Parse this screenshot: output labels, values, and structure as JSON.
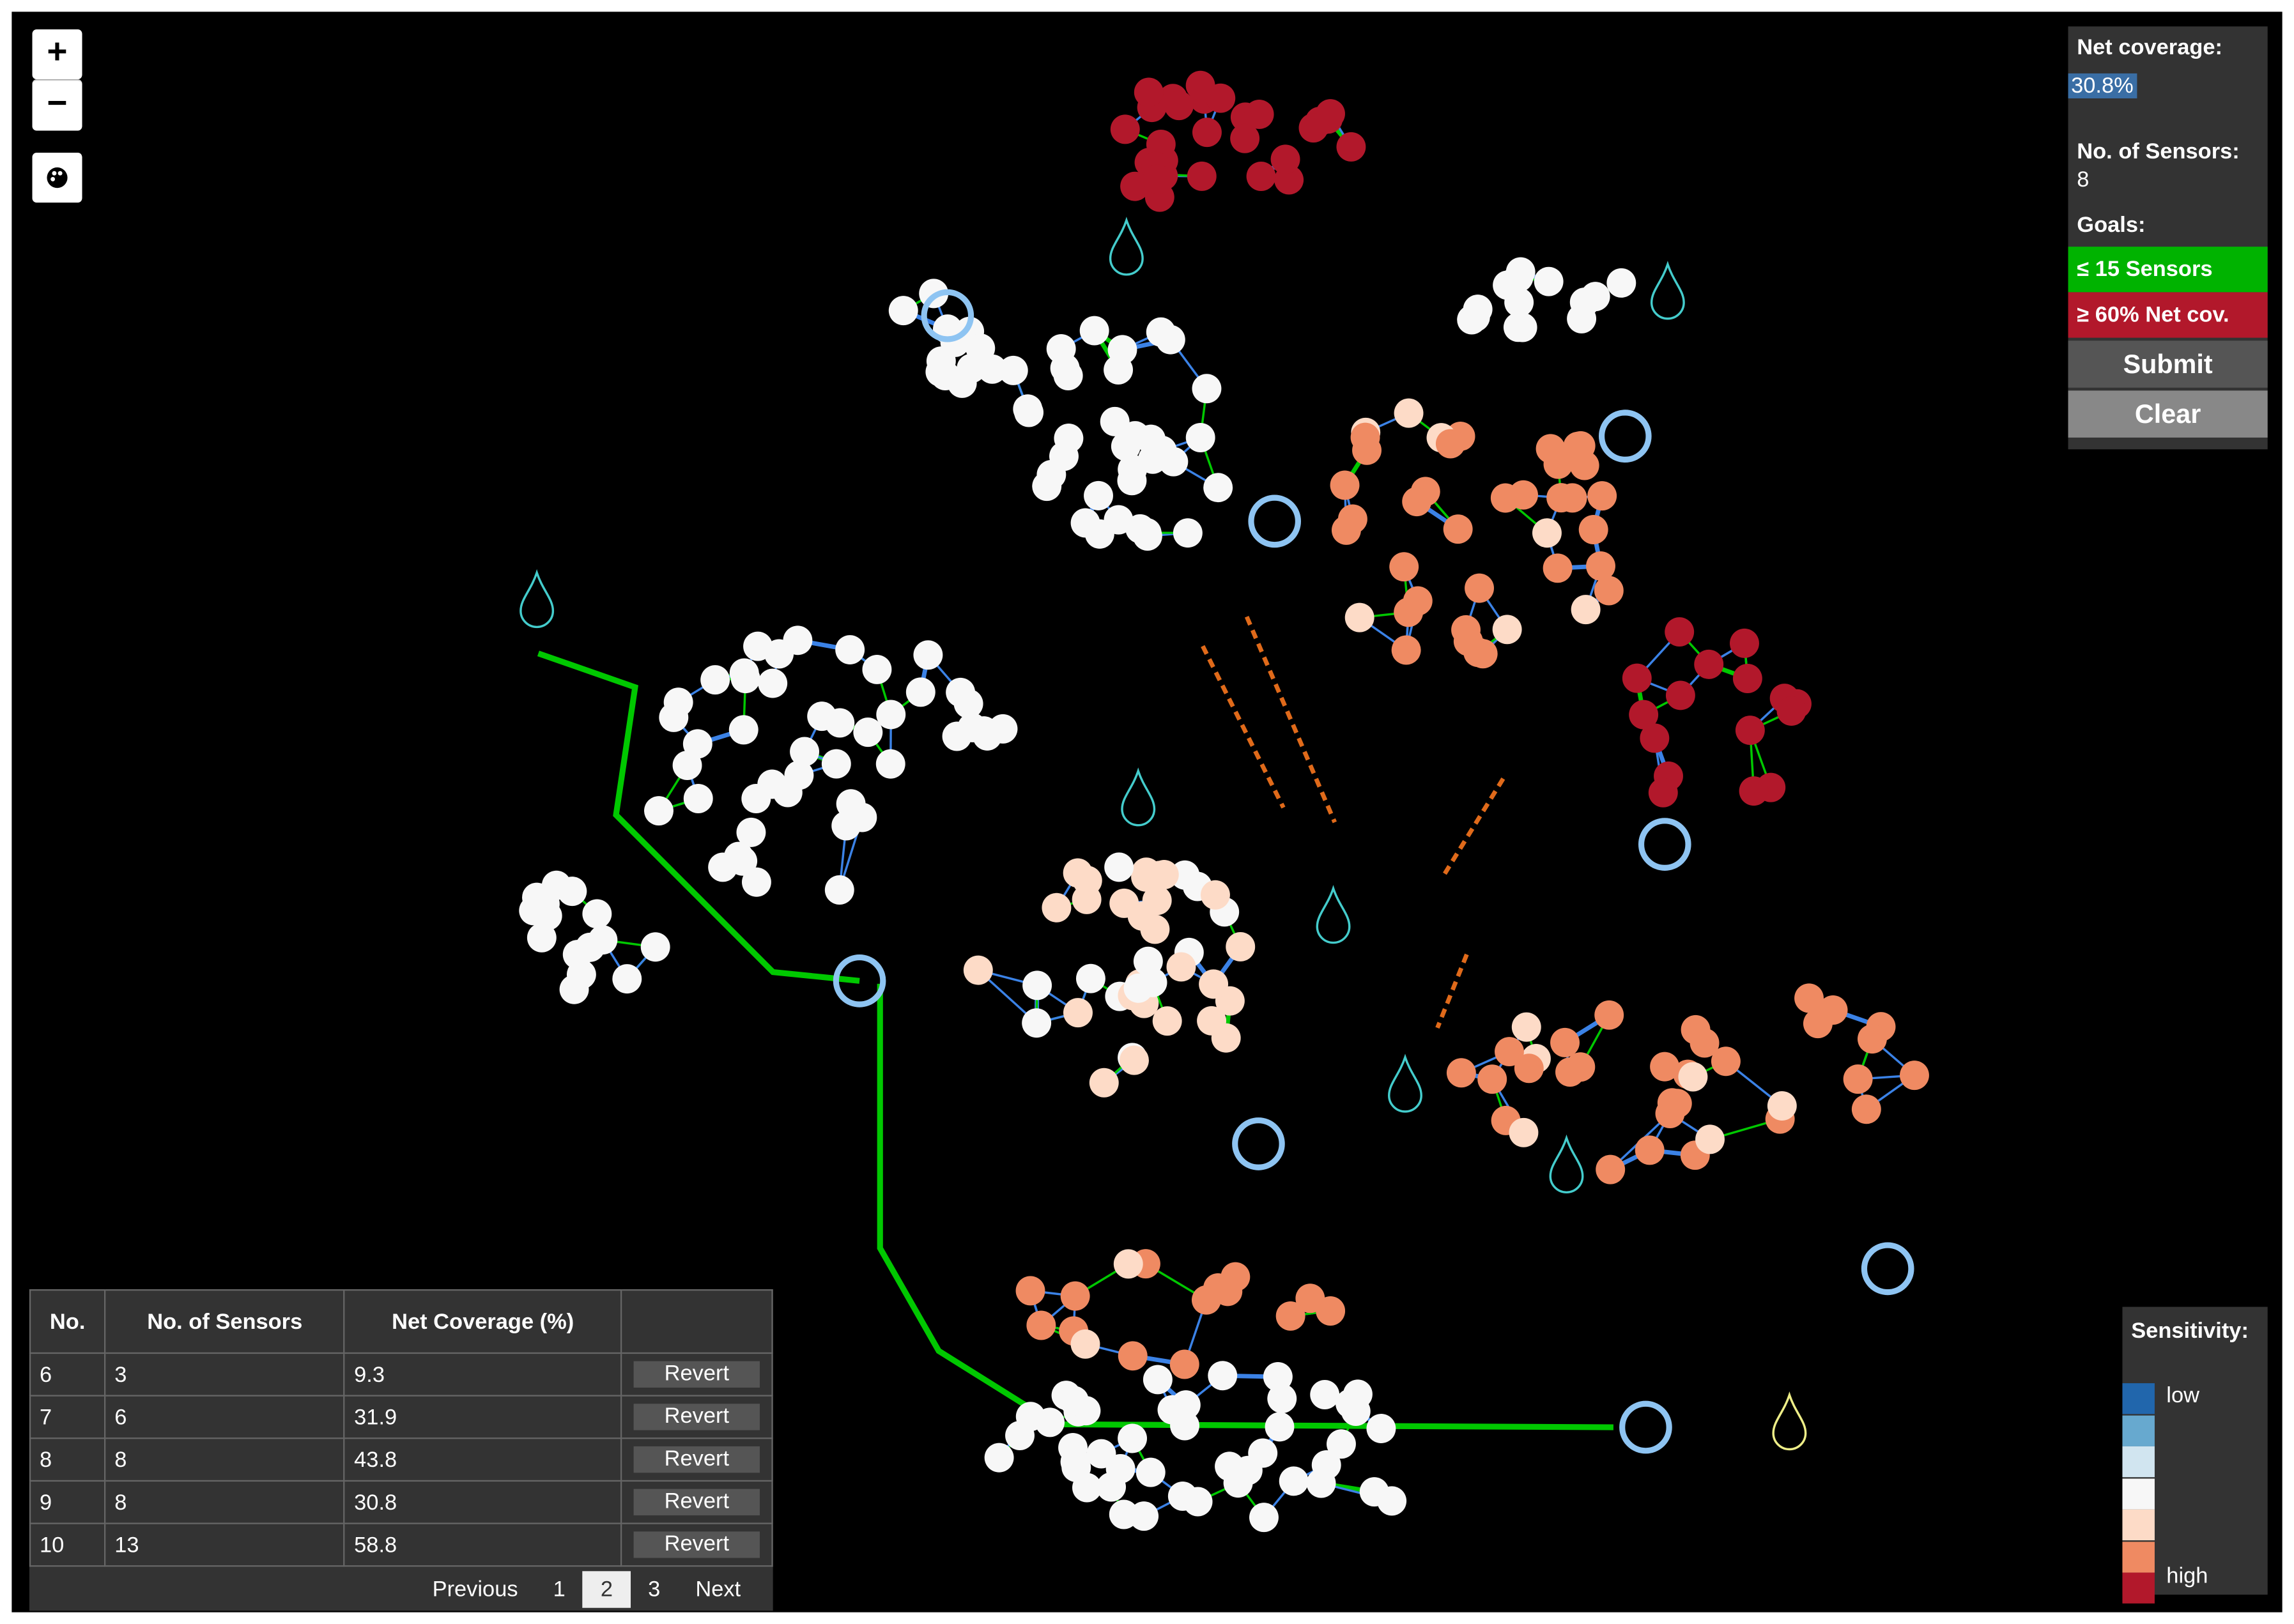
{
  "zoom": {
    "in": "+",
    "out": "−"
  },
  "status_panel": {
    "net_coverage_label": "Net coverage:",
    "net_coverage_value": "30.8%",
    "sensors_label": "No. of Sensors:",
    "sensors_value": "8",
    "goals_label": "Goals:",
    "goals": [
      {
        "text": "≤ 15 Sensors",
        "color": "#00b300"
      },
      {
        "text": "≥ 60% Net cov.",
        "color": "#b2182b"
      }
    ],
    "buttons": [
      "Submit",
      "Clear"
    ]
  },
  "table": {
    "headers": [
      "No.",
      "No. of Sensors",
      "Net Coverage (%)"
    ],
    "rows": [
      [
        "6",
        "3",
        "9.3",
        "Revert"
      ],
      [
        "7",
        "6",
        "31.9",
        "Revert"
      ],
      [
        "8",
        "8",
        "43.8",
        "Revert"
      ],
      [
        "9",
        "8",
        "30.8",
        "Revert"
      ],
      [
        "10",
        "13",
        "58.8",
        "Revert"
      ]
    ],
    "pagination": {
      "previous": "Previous",
      "pages": [
        "1",
        "2",
        "3"
      ],
      "active_page": "2",
      "next": "Next"
    }
  },
  "legend": {
    "title": "Sensitivity:",
    "low": "low",
    "high": "high",
    "colors": [
      "#2166ac",
      "#67a9cf",
      "#d1e5f0",
      "#f7f7f7",
      "#fddbc7",
      "#ef8a62",
      "#b2182b"
    ]
  }
}
